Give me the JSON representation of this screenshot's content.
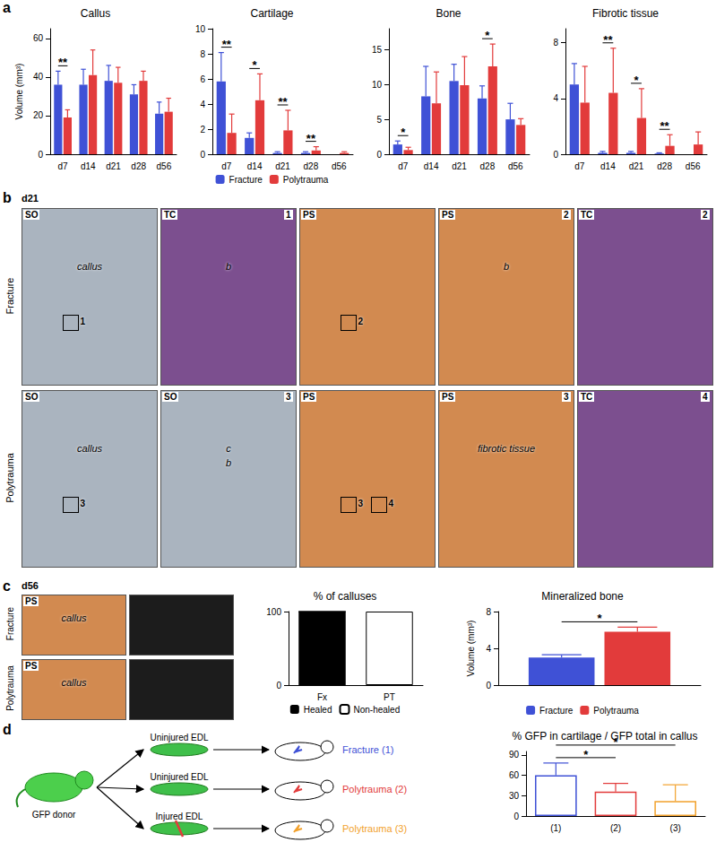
{
  "panel_labels": [
    "a",
    "b",
    "c",
    "d"
  ],
  "chart_data": [
    {
      "type": "bar",
      "title": "Callus",
      "ylabel": "Volume (mm³)",
      "categories": [
        "d7",
        "d14",
        "d21",
        "d28",
        "d56"
      ],
      "series": [
        {
          "name": "Fracture",
          "color": "#3f51d6",
          "values": [
            36,
            36,
            38,
            31,
            21
          ],
          "errors": [
            7,
            8,
            8,
            5,
            6
          ]
        },
        {
          "name": "Polytrauma",
          "color": "#e23b3b",
          "values": [
            19,
            41,
            37,
            38,
            22
          ],
          "errors": [
            4,
            13,
            8,
            5,
            7
          ]
        }
      ],
      "ylim": [
        0,
        65
      ],
      "yticks": [
        0,
        20,
        40,
        60
      ],
      "grid": false,
      "annotations": [
        {
          "category": "d7",
          "text": "**"
        }
      ]
    },
    {
      "type": "bar",
      "title": "Cartilage",
      "categories": [
        "d7",
        "d14",
        "d21",
        "d28",
        "d56"
      ],
      "series": [
        {
          "name": "Fracture",
          "color": "#3f51d6",
          "values": [
            5.8,
            1.3,
            0.1,
            0.1,
            0.0
          ],
          "errors": [
            2.3,
            0.4,
            0.1,
            0.1,
            0.0
          ]
        },
        {
          "name": "Polytrauma",
          "color": "#e23b3b",
          "values": [
            1.7,
            4.3,
            1.9,
            0.3,
            0.1
          ],
          "errors": [
            1.5,
            2.1,
            1.6,
            0.3,
            0.1
          ]
        }
      ],
      "ylim": [
        0,
        10
      ],
      "yticks": [
        0,
        2,
        4,
        6,
        8,
        10
      ],
      "grid": false,
      "legend": "bottom",
      "annotations": [
        {
          "category": "d7",
          "text": "**"
        },
        {
          "category": "d14",
          "text": "*"
        },
        {
          "category": "d21",
          "text": "**"
        },
        {
          "category": "d28",
          "text": "**"
        }
      ]
    },
    {
      "type": "bar",
      "title": "Bone",
      "categories": [
        "d7",
        "d14",
        "d21",
        "d28",
        "d56"
      ],
      "series": [
        {
          "name": "Fracture",
          "color": "#3f51d6",
          "values": [
            1.4,
            8.3,
            10.5,
            8.0,
            5.0
          ],
          "errors": [
            0.5,
            4.3,
            2.4,
            1.8,
            2.3
          ]
        },
        {
          "name": "Polytrauma",
          "color": "#e23b3b",
          "values": [
            0.6,
            7.3,
            9.9,
            12.6,
            4.2
          ],
          "errors": [
            0.4,
            4.5,
            4.1,
            3.2,
            0.9
          ]
        }
      ],
      "ylim": [
        0,
        18
      ],
      "yticks": [
        0,
        5,
        10,
        15
      ],
      "grid": false,
      "annotations": [
        {
          "category": "d7",
          "text": "*"
        },
        {
          "category": "d28",
          "text": "*"
        }
      ]
    },
    {
      "type": "bar",
      "title": "Fibrotic tissue",
      "categories": [
        "d7",
        "d14",
        "d21",
        "d28",
        "d56"
      ],
      "series": [
        {
          "name": "Fracture",
          "color": "#3f51d6",
          "values": [
            5.0,
            0.1,
            0.1,
            0.05,
            0.0
          ],
          "errors": [
            1.5,
            0.1,
            0.1,
            0.05,
            0.0
          ]
        },
        {
          "name": "Polytrauma",
          "color": "#e23b3b",
          "values": [
            3.7,
            4.4,
            2.6,
            0.6,
            0.7
          ],
          "errors": [
            2.6,
            3.2,
            2.1,
            0.8,
            0.9
          ]
        }
      ],
      "ylim": [
        0,
        9
      ],
      "yticks": [
        0,
        4,
        8
      ],
      "grid": false,
      "annotations": [
        {
          "category": "d14",
          "text": "**"
        },
        {
          "category": "d21",
          "text": "*"
        },
        {
          "category": "d28",
          "text": "**"
        }
      ]
    },
    {
      "type": "bar",
      "title": "% of calluses",
      "stacked": true,
      "categories": [
        "Fx",
        "PT"
      ],
      "series": [
        {
          "name": "Healed",
          "color": "#000000",
          "values": [
            100,
            0
          ]
        },
        {
          "name": "Non-healed",
          "color": "#ffffff",
          "values": [
            0,
            100
          ]
        }
      ],
      "ylim": [
        0,
        100
      ],
      "yticks": [
        0,
        100
      ],
      "grid": false,
      "legend": "bottom"
    },
    {
      "type": "bar",
      "title": "Mineralized bone",
      "ylabel": "Volume (mm³)",
      "categories": [
        null
      ],
      "series": [
        {
          "name": "Fracture",
          "color": "#3f51d6",
          "values": [
            3.0
          ],
          "errors": [
            0.3
          ]
        },
        {
          "name": "Polytrauma",
          "color": "#e23b3b",
          "values": [
            5.8
          ],
          "errors": [
            0.5
          ]
        }
      ],
      "ylim": [
        0,
        8
      ],
      "yticks": [
        0,
        4,
        8
      ],
      "grid": false,
      "legend": "bottom",
      "annotations": [
        {
          "text": "*"
        }
      ]
    },
    {
      "type": "bar",
      "title": "% GFP in cartilage / GFP total in callus",
      "categories": [
        "(1)",
        "(2)",
        "(3)"
      ],
      "values": [
        60,
        36,
        22
      ],
      "errors": [
        18,
        12,
        24
      ],
      "colors": [
        "#3f51d6",
        "#e23b3b",
        "#f2a12c"
      ],
      "ylim": [
        0,
        95
      ],
      "yticks": [
        0,
        30,
        60,
        90
      ],
      "grid": false,
      "annotations": [
        {
          "from": "(1)",
          "to": "(2)",
          "text": "*"
        },
        {
          "from": "(1)",
          "to": "(3)",
          "text": "*"
        }
      ]
    }
  ],
  "micrographs_b": {
    "timepoint": "d21",
    "rows": [
      {
        "name": "Fracture",
        "tiles": [
          {
            "stain": "SO",
            "texts": [
              "callus"
            ],
            "boxes": [
              "1"
            ]
          },
          {
            "stain": "TC",
            "number": "1",
            "texts": [
              "b"
            ]
          },
          {
            "stain": "PS",
            "boxes": [
              "2"
            ]
          },
          {
            "stain": "PS",
            "number": "2",
            "texts": [
              "b"
            ]
          },
          {
            "stain": "TC",
            "number": "2"
          }
        ]
      },
      {
        "name": "Polytrauma",
        "tiles": [
          {
            "stain": "SO",
            "texts": [
              "callus"
            ],
            "boxes": [
              "3"
            ]
          },
          {
            "stain": "SO",
            "number": "3",
            "texts": [
              "c",
              "b"
            ]
          },
          {
            "stain": "PS",
            "boxes": [
              "3",
              "4"
            ]
          },
          {
            "stain": "PS",
            "number": "3",
            "texts": [
              "fibrotic tissue"
            ]
          },
          {
            "stain": "TC",
            "number": "4"
          }
        ]
      }
    ]
  },
  "micrographs_c": {
    "timepoint": "d56",
    "rows": [
      {
        "name": "Fracture",
        "tiles": [
          {
            "stain": "PS",
            "texts": [
              "callus"
            ]
          },
          {}
        ]
      },
      {
        "name": "Polytrauma",
        "tiles": [
          {
            "stain": "PS",
            "texts": [
              "callus"
            ]
          },
          {}
        ]
      }
    ]
  },
  "diagram_d": {
    "donor": "GFP donor",
    "arms": [
      {
        "muscle": "Uninjured EDL",
        "recipient": "Fracture (1)",
        "color": "#3f51d6"
      },
      {
        "muscle": "Uninjured EDL",
        "recipient": "Polytrauma (2)",
        "color": "#e23b3b"
      },
      {
        "muscle": "Injured EDL",
        "recipient": "Polytrauma (3)",
        "color": "#f2a12c"
      }
    ]
  }
}
